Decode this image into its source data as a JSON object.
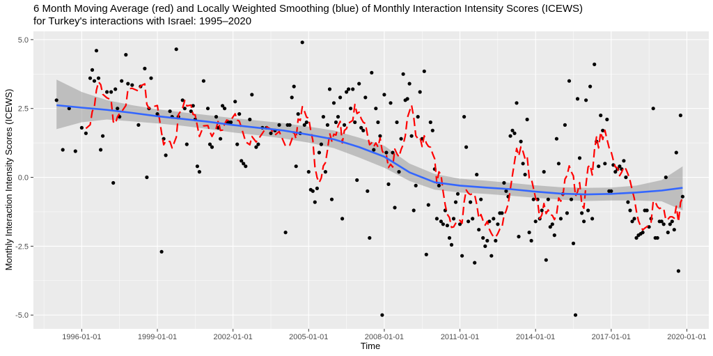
{
  "chart_data": {
    "type": "scatter",
    "title_lines": [
      "6 Month Moving Average (red) and Locally Weighted Smoothing (blue) of Monthly Interaction Intensity Scores (ICEWS)",
      "for Turkey's interactions with Israel: 1995–2020"
    ],
    "xlabel": "Time",
    "ylabel": "Monthly Interaction Intensity Scores (ICEWS)",
    "x_ticks": [
      "1996-01-01",
      "1999-01-01",
      "2002-01-01",
      "2005-01-01",
      "2008-01-01",
      "2011-01-01",
      "2014-01-01",
      "2017-01-01",
      "2020-01-01"
    ],
    "y_ticks": [
      "-5.0",
      "-2.5",
      "0.0",
      "2.5",
      "5.0"
    ],
    "xlim": [
      "1994-02-01",
      "2020-11-15"
    ],
    "ylim": [
      -5.5,
      5.3
    ],
    "grid": true,
    "points": [
      {
        "x": "1995-01",
        "y": 2.8
      },
      {
        "x": "1995-04",
        "y": 1.0
      },
      {
        "x": "1995-07",
        "y": 2.5
      },
      {
        "x": "1995-10",
        "y": 0.95
      },
      {
        "x": "1996-01",
        "y": 1.8
      },
      {
        "x": "1996-03",
        "y": 1.6
      },
      {
        "x": "1996-05",
        "y": 3.6
      },
      {
        "x": "1996-06",
        "y": 3.9
      },
      {
        "x": "1996-07",
        "y": 3.5
      },
      {
        "x": "1996-08",
        "y": 4.6
      },
      {
        "x": "1996-09",
        "y": 3.6
      },
      {
        "x": "1996-10",
        "y": 1.0
      },
      {
        "x": "1996-11",
        "y": 1.5
      },
      {
        "x": "1997-01",
        "y": 3.1
      },
      {
        "x": "1997-03",
        "y": 3.1
      },
      {
        "x": "1997-04",
        "y": -0.2
      },
      {
        "x": "1997-05",
        "y": 3.2
      },
      {
        "x": "1997-06",
        "y": 2.5
      },
      {
        "x": "1997-07",
        "y": 2.2
      },
      {
        "x": "1997-08",
        "y": 3.5
      },
      {
        "x": "1997-10",
        "y": 4.45
      },
      {
        "x": "1997-11",
        "y": 3.4
      },
      {
        "x": "1998-01",
        "y": 3.35
      },
      {
        "x": "1998-04",
        "y": 1.9
      },
      {
        "x": "1998-05",
        "y": 3.3
      },
      {
        "x": "1998-07",
        "y": 3.95
      },
      {
        "x": "1998-08",
        "y": 0.0
      },
      {
        "x": "1998-09",
        "y": 2.5
      },
      {
        "x": "1998-10",
        "y": 3.6
      },
      {
        "x": "1999-01",
        "y": 2.3
      },
      {
        "x": "1999-03",
        "y": -2.7
      },
      {
        "x": "1999-04",
        "y": 1.4
      },
      {
        "x": "1999-05",
        "y": 0.8
      },
      {
        "x": "1999-07",
        "y": 2.4
      },
      {
        "x": "1999-08",
        "y": 2.2
      },
      {
        "x": "1999-10",
        "y": 4.65
      },
      {
        "x": "1999-11",
        "y": 2.2
      },
      {
        "x": "2000-01",
        "y": 2.8
      },
      {
        "x": "2000-02",
        "y": 2.5
      },
      {
        "x": "2000-03",
        "y": 1.2
      },
      {
        "x": "2000-05",
        "y": 2.4
      },
      {
        "x": "2000-06",
        "y": 2.6
      },
      {
        "x": "2000-07",
        "y": 2.1
      },
      {
        "x": "2000-08",
        "y": 0.4
      },
      {
        "x": "2000-09",
        "y": 0.2
      },
      {
        "x": "2000-11",
        "y": 3.5
      },
      {
        "x": "2001-01",
        "y": 2.5
      },
      {
        "x": "2001-02",
        "y": 1.2
      },
      {
        "x": "2001-03",
        "y": 1.1
      },
      {
        "x": "2001-05",
        "y": 2.2
      },
      {
        "x": "2001-06",
        "y": 1.8
      },
      {
        "x": "2001-07",
        "y": 1.4
      },
      {
        "x": "2001-08",
        "y": 2.6
      },
      {
        "x": "2001-09",
        "y": 2.5
      },
      {
        "x": "2001-10",
        "y": 2.0
      },
      {
        "x": "2001-11",
        "y": 2.0
      },
      {
        "x": "2001-12",
        "y": 2.0
      },
      {
        "x": "2002-02",
        "y": 2.75
      },
      {
        "x": "2002-03",
        "y": 1.2
      },
      {
        "x": "2002-04",
        "y": 2.3
      },
      {
        "x": "2002-05",
        "y": 0.6
      },
      {
        "x": "2002-06",
        "y": 0.5
      },
      {
        "x": "2002-07",
        "y": 0.4
      },
      {
        "x": "2002-09",
        "y": 2.1
      },
      {
        "x": "2002-10",
        "y": 3.0
      },
      {
        "x": "2002-12",
        "y": 1.1
      },
      {
        "x": "2003-01",
        "y": 1.2
      },
      {
        "x": "2003-03",
        "y": 1.8
      },
      {
        "x": "2003-05",
        "y": 1.8
      },
      {
        "x": "2003-07",
        "y": 1.6
      },
      {
        "x": "2003-09",
        "y": 1.7
      },
      {
        "x": "2003-11",
        "y": 1.9
      },
      {
        "x": "2004-02",
        "y": -2.0
      },
      {
        "x": "2004-03",
        "y": 1.9
      },
      {
        "x": "2004-04",
        "y": 1.9
      },
      {
        "x": "2004-05",
        "y": 2.9
      },
      {
        "x": "2004-06",
        "y": 3.3
      },
      {
        "x": "2004-07",
        "y": 0.4
      },
      {
        "x": "2004-08",
        "y": 2.3
      },
      {
        "x": "2004-09",
        "y": 1.6
      },
      {
        "x": "2004-10",
        "y": 4.9
      },
      {
        "x": "2004-11",
        "y": 1.9
      },
      {
        "x": "2004-12",
        "y": 2.0
      },
      {
        "x": "2005-01",
        "y": 0.2
      },
      {
        "x": "2005-02",
        "y": -0.45
      },
      {
        "x": "2005-03",
        "y": -0.5
      },
      {
        "x": "2005-04",
        "y": -0.9
      },
      {
        "x": "2005-05",
        "y": -0.4
      },
      {
        "x": "2005-06",
        "y": 0.9
      },
      {
        "x": "2005-07",
        "y": 1.2
      },
      {
        "x": "2005-08",
        "y": 2.2
      },
      {
        "x": "2005-09",
        "y": 0.2
      },
      {
        "x": "2005-10",
        "y": 1.9
      },
      {
        "x": "2005-11",
        "y": 3.2
      },
      {
        "x": "2005-12",
        "y": -0.8
      },
      {
        "x": "2006-01",
        "y": 2.7
      },
      {
        "x": "2006-02",
        "y": 2.0
      },
      {
        "x": "2006-03",
        "y": 2.2
      },
      {
        "x": "2006-04",
        "y": 2.9
      },
      {
        "x": "2006-05",
        "y": -1.5
      },
      {
        "x": "2006-06",
        "y": 1.9
      },
      {
        "x": "2006-07",
        "y": 3.1
      },
      {
        "x": "2006-08",
        "y": 3.2
      },
      {
        "x": "2006-09",
        "y": 2.5
      },
      {
        "x": "2006-10",
        "y": 3.2
      },
      {
        "x": "2006-11",
        "y": 2.0
      },
      {
        "x": "2006-12",
        "y": -0.1
      },
      {
        "x": "2007-01",
        "y": 3.4
      },
      {
        "x": "2007-02",
        "y": 1.8
      },
      {
        "x": "2007-03",
        "y": 1.7
      },
      {
        "x": "2007-04",
        "y": 2.9
      },
      {
        "x": "2007-05",
        "y": -0.5
      },
      {
        "x": "2007-06",
        "y": -2.2
      },
      {
        "x": "2007-07",
        "y": 3.8
      },
      {
        "x": "2007-08",
        "y": 1.0
      },
      {
        "x": "2007-09",
        "y": 2.5
      },
      {
        "x": "2007-10",
        "y": 2.0
      },
      {
        "x": "2007-11",
        "y": 1.5
      },
      {
        "x": "2007-12",
        "y": -5.0
      },
      {
        "x": "2008-01",
        "y": 3.0
      },
      {
        "x": "2008-02",
        "y": 0.9
      },
      {
        "x": "2008-03",
        "y": -0.25
      },
      {
        "x": "2008-04",
        "y": 2.7
      },
      {
        "x": "2008-05",
        "y": 0.9
      },
      {
        "x": "2008-06",
        "y": -1.1
      },
      {
        "x": "2008-07",
        "y": 2.0
      },
      {
        "x": "2008-08",
        "y": 0.2
      },
      {
        "x": "2008-09",
        "y": 1.4
      },
      {
        "x": "2008-10",
        "y": 3.75
      },
      {
        "x": "2008-11",
        "y": 2.8
      },
      {
        "x": "2008-12",
        "y": 2.85
      },
      {
        "x": "2009-01",
        "y": 3.4
      },
      {
        "x": "2009-02",
        "y": 1.5
      },
      {
        "x": "2009-03",
        "y": -1.2
      },
      {
        "x": "2009-04",
        "y": -0.3
      },
      {
        "x": "2009-05",
        "y": 2.2
      },
      {
        "x": "2009-06",
        "y": 3.1
      },
      {
        "x": "2009-07",
        "y": 1.4
      },
      {
        "x": "2009-08",
        "y": 3.85
      },
      {
        "x": "2009-09",
        "y": -2.8
      },
      {
        "x": "2009-10",
        "y": -1.0
      },
      {
        "x": "2009-11",
        "y": 2.0
      },
      {
        "x": "2009-12",
        "y": 1.7
      },
      {
        "x": "2010-01",
        "y": 0.3
      },
      {
        "x": "2010-02",
        "y": -1.5
      },
      {
        "x": "2010-03",
        "y": -0.3
      },
      {
        "x": "2010-04",
        "y": -1.6
      },
      {
        "x": "2010-05",
        "y": -1.7
      },
      {
        "x": "2010-06",
        "y": -1.2
      },
      {
        "x": "2010-07",
        "y": -1.75
      },
      {
        "x": "2010-08",
        "y": -2.2
      },
      {
        "x": "2010-09",
        "y": -2.45
      },
      {
        "x": "2010-10",
        "y": -1.5
      },
      {
        "x": "2010-11",
        "y": -0.9
      },
      {
        "x": "2010-12",
        "y": -0.6
      },
      {
        "x": "2011-01",
        "y": -1.7
      },
      {
        "x": "2011-02",
        "y": -2.85
      },
      {
        "x": "2011-03",
        "y": 2.2
      },
      {
        "x": "2011-04",
        "y": 1.1
      },
      {
        "x": "2011-05",
        "y": -1.6
      },
      {
        "x": "2011-06",
        "y": -0.9
      },
      {
        "x": "2011-07",
        "y": -1.5
      },
      {
        "x": "2011-08",
        "y": -3.1
      },
      {
        "x": "2011-09",
        "y": 0.1
      },
      {
        "x": "2011-10",
        "y": -1.9
      },
      {
        "x": "2011-11",
        "y": -0.8
      },
      {
        "x": "2011-12",
        "y": -2.2
      },
      {
        "x": "2012-01",
        "y": -2.5
      },
      {
        "x": "2012-02",
        "y": -2.3
      },
      {
        "x": "2012-03",
        "y": -1.6
      },
      {
        "x": "2012-04",
        "y": -2.85
      },
      {
        "x": "2012-05",
        "y": -1.5
      },
      {
        "x": "2012-06",
        "y": -2.3
      },
      {
        "x": "2012-07",
        "y": -1.7
      },
      {
        "x": "2012-08",
        "y": -1.3
      },
      {
        "x": "2012-09",
        "y": -1.3
      },
      {
        "x": "2012-10",
        "y": -0.2
      },
      {
        "x": "2012-11",
        "y": -0.5
      },
      {
        "x": "2012-12",
        "y": -0.7
      },
      {
        "x": "2013-01",
        "y": 1.5
      },
      {
        "x": "2013-02",
        "y": 1.7
      },
      {
        "x": "2013-03",
        "y": 1.6
      },
      {
        "x": "2013-04",
        "y": 2.7
      },
      {
        "x": "2013-05",
        "y": -2.15
      },
      {
        "x": "2013-06",
        "y": 1.3
      },
      {
        "x": "2013-07",
        "y": 0.5
      },
      {
        "x": "2013-08",
        "y": 0.1
      },
      {
        "x": "2013-09",
        "y": 2.1
      },
      {
        "x": "2013-10",
        "y": -2.0
      },
      {
        "x": "2013-11",
        "y": -2.3
      },
      {
        "x": "2013-12",
        "y": -0.8
      },
      {
        "x": "2014-01",
        "y": -1.6
      },
      {
        "x": "2014-02",
        "y": -0.8
      },
      {
        "x": "2014-03",
        "y": -1.5
      },
      {
        "x": "2014-04",
        "y": -1.2
      },
      {
        "x": "2014-05",
        "y": 0.2
      },
      {
        "x": "2014-06",
        "y": -3.0
      },
      {
        "x": "2014-07",
        "y": -0.8
      },
      {
        "x": "2014-08",
        "y": -1.8
      },
      {
        "x": "2014-09",
        "y": -1.7
      },
      {
        "x": "2014-10",
        "y": -2.1
      },
      {
        "x": "2014-11",
        "y": 1.4
      },
      {
        "x": "2014-12",
        "y": 0.5
      },
      {
        "x": "2015-01",
        "y": -1.5
      },
      {
        "x": "2015-02",
        "y": -0.6
      },
      {
        "x": "2015-03",
        "y": 1.9
      },
      {
        "x": "2015-04",
        "y": -1.3
      },
      {
        "x": "2015-05",
        "y": 3.5
      },
      {
        "x": "2015-06",
        "y": -0.8
      },
      {
        "x": "2015-07",
        "y": -2.4
      },
      {
        "x": "2015-08",
        "y": -5.0
      },
      {
        "x": "2015-09",
        "y": 2.85
      },
      {
        "x": "2015-10",
        "y": 0.7
      },
      {
        "x": "2015-11",
        "y": -1.3
      },
      {
        "x": "2015-12",
        "y": -1.6
      },
      {
        "x": "2016-01",
        "y": 2.8
      },
      {
        "x": "2016-02",
        "y": -1.2
      },
      {
        "x": "2016-03",
        "y": 3.3
      },
      {
        "x": "2016-04",
        "y": -1.5
      },
      {
        "x": "2016-05",
        "y": 4.1
      },
      {
        "x": "2016-06",
        "y": 1.3
      },
      {
        "x": "2016-07",
        "y": 0.4
      },
      {
        "x": "2016-08",
        "y": 2.25
      },
      {
        "x": "2016-09",
        "y": 1.7
      },
      {
        "x": "2016-10",
        "y": 0.5
      },
      {
        "x": "2016-11",
        "y": 2.1
      },
      {
        "x": "2016-12",
        "y": -0.5
      },
      {
        "x": "2017-01",
        "y": -0.5
      },
      {
        "x": "2017-02",
        "y": 0.45
      },
      {
        "x": "2017-03",
        "y": 0.2
      },
      {
        "x": "2017-04",
        "y": 0.3
      },
      {
        "x": "2017-05",
        "y": 0.4
      },
      {
        "x": "2017-06",
        "y": 0.3
      },
      {
        "x": "2017-07",
        "y": 0.6
      },
      {
        "x": "2017-08",
        "y": 0.0
      },
      {
        "x": "2017-09",
        "y": -0.9
      },
      {
        "x": "2017-10",
        "y": -1.2
      },
      {
        "x": "2017-11",
        "y": -1.6
      },
      {
        "x": "2017-12",
        "y": -1.5
      },
      {
        "x": "2018-01",
        "y": -2.2
      },
      {
        "x": "2018-02",
        "y": -2.1
      },
      {
        "x": "2018-03",
        "y": -2.05
      },
      {
        "x": "2018-04",
        "y": -2.0
      },
      {
        "x": "2018-05",
        "y": -1.2
      },
      {
        "x": "2018-06",
        "y": -1.2
      },
      {
        "x": "2018-07",
        "y": -1.8
      },
      {
        "x": "2018-08",
        "y": -1.5
      },
      {
        "x": "2018-09",
        "y": 2.5
      },
      {
        "x": "2018-10",
        "y": -2.2
      },
      {
        "x": "2018-11",
        "y": -2.2
      },
      {
        "x": "2018-12",
        "y": -1.6
      },
      {
        "x": "2019-01",
        "y": -1.6
      },
      {
        "x": "2019-02",
        "y": -1.7
      },
      {
        "x": "2019-03",
        "y": 0.0
      },
      {
        "x": "2019-04",
        "y": -2.0
      },
      {
        "x": "2019-05",
        "y": -1.7
      },
      {
        "x": "2019-06",
        "y": -1.6
      },
      {
        "x": "2019-07",
        "y": -1.9
      },
      {
        "x": "2019-08",
        "y": 0.9
      },
      {
        "x": "2019-09",
        "y": -3.4
      },
      {
        "x": "2019-10",
        "y": 2.25
      },
      {
        "x": "2019-11",
        "y": -0.7
      }
    ],
    "loess": {
      "x": [
        "1995-01",
        "1996-01",
        "1997-01",
        "1998-01",
        "1999-01",
        "2000-01",
        "2001-01",
        "2002-01",
        "2003-01",
        "2004-01",
        "2005-01",
        "2006-01",
        "2007-01",
        "2008-01",
        "2009-01",
        "2010-01",
        "2011-01",
        "2012-01",
        "2013-01",
        "2014-01",
        "2015-01",
        "2016-01",
        "2017-01",
        "2018-01",
        "2019-01",
        "2019-11"
      ],
      "y": [
        2.62,
        2.53,
        2.45,
        2.34,
        2.22,
        2.12,
        2.02,
        1.9,
        1.8,
        1.7,
        1.55,
        1.38,
        1.1,
        0.75,
        0.18,
        -0.18,
        -0.3,
        -0.37,
        -0.43,
        -0.52,
        -0.59,
        -0.62,
        -0.6,
        -0.55,
        -0.48,
        -0.38
      ],
      "ci_lower": [
        1.75,
        2.0,
        2.1,
        2.03,
        1.96,
        1.87,
        1.76,
        1.63,
        1.53,
        1.41,
        1.26,
        1.06,
        0.72,
        0.35,
        -0.13,
        -0.45,
        -0.55,
        -0.6,
        -0.67,
        -0.74,
        -0.81,
        -0.86,
        -0.84,
        -0.84,
        -0.87,
        -1.2
      ],
      "ci_upper": [
        3.55,
        3.1,
        2.8,
        2.62,
        2.47,
        2.36,
        2.26,
        2.15,
        2.06,
        1.97,
        1.84,
        1.7,
        1.44,
        1.15,
        0.5,
        0.12,
        -0.05,
        -0.12,
        -0.2,
        -0.29,
        -0.36,
        -0.38,
        -0.37,
        -0.3,
        -0.1,
        0.4
      ]
    },
    "moving_average_color": "#ff0000",
    "loess_color": "#3366ff",
    "ci_color": "#999999",
    "panel_background": "#ebebeb",
    "gridline_color": "#ffffff",
    "point_color": "#000000"
  }
}
